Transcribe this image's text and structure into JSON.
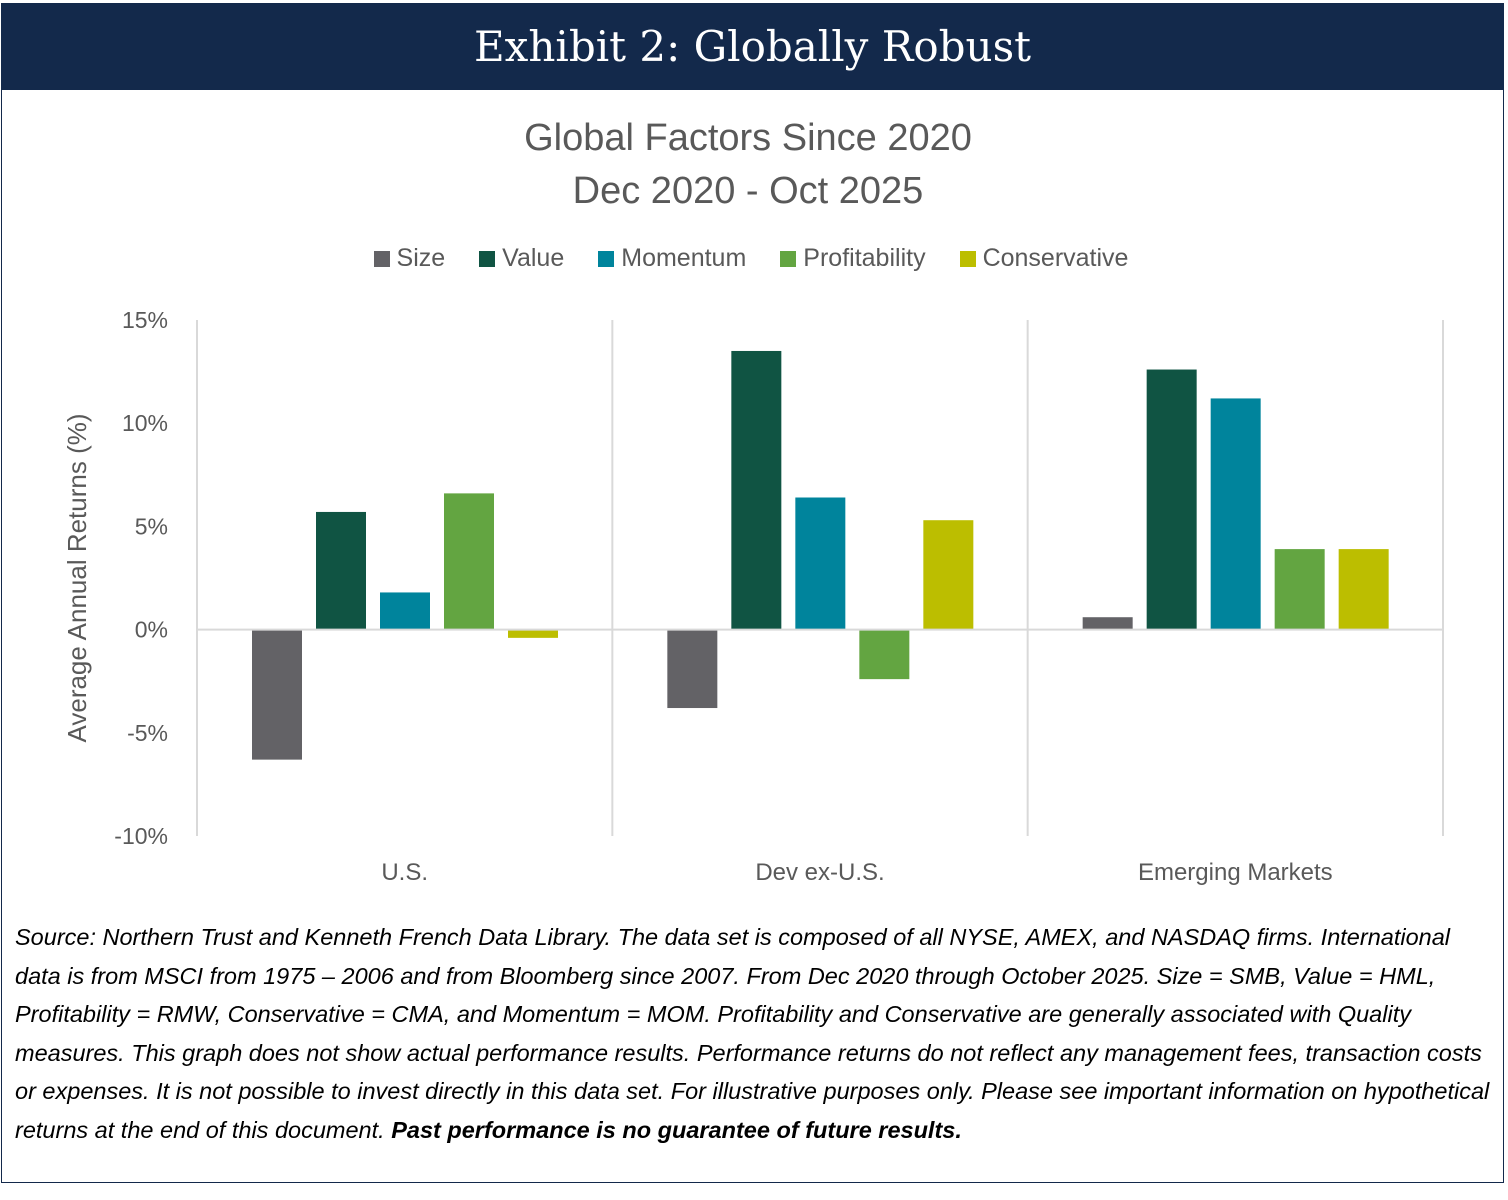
{
  "header": {
    "title": "Exhibit 2: Globally Robust"
  },
  "chart_data": {
    "type": "bar",
    "title": "Global Factors Since 2020",
    "subtitle": "Dec 2020 - Oct 2025",
    "xlabel": "",
    "ylabel": "Average Annual Returns (%)",
    "ylim": [
      -10,
      15
    ],
    "yticks": [
      15,
      10,
      5,
      0,
      -5,
      -10
    ],
    "ytick_labels": [
      "15%",
      "10%",
      "5%",
      "0%",
      "-5%",
      "-10%"
    ],
    "legend_position": "top",
    "categories": [
      "U.S.",
      "Dev ex-U.S.",
      "Emerging Markets"
    ],
    "series": [
      {
        "name": "Size",
        "color": "#636266",
        "values": [
          -6.3,
          -3.8,
          0.6
        ]
      },
      {
        "name": "Value",
        "color": "#105443",
        "values": [
          5.7,
          13.5,
          12.6
        ]
      },
      {
        "name": "Momentum",
        "color": "#00849c",
        "values": [
          1.8,
          6.4,
          11.2
        ]
      },
      {
        "name": "Profitability",
        "color": "#63a541",
        "values": [
          6.6,
          -2.4,
          3.9
        ]
      },
      {
        "name": "Conservative",
        "color": "#bcbe00",
        "values": [
          -0.4,
          5.3,
          3.9
        ]
      }
    ]
  },
  "source": {
    "text": "Source: Northern Trust and Kenneth French Data Library. The data set is composed of all NYSE, AMEX, and NASDAQ firms. International data is from MSCI from 1975 – 2006 and from Bloomberg since 2007. From Dec 2020 through October 2025. Size = SMB, Value = HML, Profitability = RMW, Conservative = CMA, and Momentum = MOM. Profitability and Conservative are generally associated with Quality measures. This graph does not show actual performance results. Performance returns do not reflect any management fees, transaction costs or expenses. It is not possible to invest directly in this data set. For illustrative purposes only. Please see important information on hypothetical returns at the end of this document. ",
    "bold": "Past performance is no guarantee of future results."
  }
}
